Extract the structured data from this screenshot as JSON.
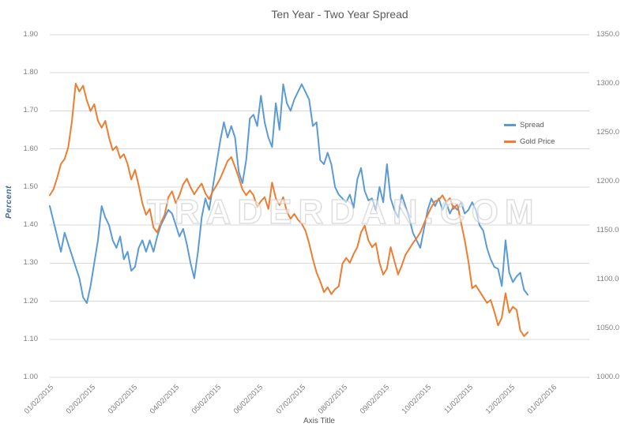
{
  "chart_data": {
    "type": "line",
    "title": "Ten Year - Two Year Spread",
    "watermark": "TRADERDAN.COM",
    "grid": "horizontal",
    "legend_position": "right-center",
    "x_axis": {
      "title": "Axis Title",
      "tick_labels": [
        "01/02/2015",
        "02/02/2015",
        "03/02/2015",
        "04/02/2015",
        "05/02/2015",
        "06/02/2015",
        "07/02/2015",
        "08/02/2015",
        "09/02/2015",
        "10/02/2015",
        "11/02/2015",
        "12/02/2015",
        "01/02/2016"
      ]
    },
    "left_axis": {
      "title": "Percent",
      "min": 1.0,
      "max": 1.9,
      "step": 0.1,
      "tick_labels": [
        "1.90",
        "1.80",
        "1.70",
        "1.60",
        "1.50",
        "1.40",
        "1.30",
        "1.20",
        "1.10",
        "1.00"
      ]
    },
    "right_axis": {
      "min": 1000.0,
      "max": 1350.0,
      "step": 50.0,
      "tick_labels": [
        "1350.0",
        "1300.0",
        "1250.0",
        "1200.0",
        "1150.0",
        "1100.0",
        "1050.0",
        "1000.0"
      ]
    },
    "style": {
      "grid_color": "#D9D9D9",
      "tick_text_color": "#7F7F7F",
      "title_color": "#595959",
      "y_axis_title_color": "#44699E",
      "watermark_color": "#D0D0D0"
    },
    "series": [
      {
        "name": "Spread",
        "axis": "left",
        "color": "#5B9BD5",
        "values": [
          1.45,
          1.41,
          1.37,
          1.33,
          1.38,
          1.35,
          1.32,
          1.29,
          1.26,
          1.21,
          1.195,
          1.24,
          1.3,
          1.36,
          1.45,
          1.42,
          1.4,
          1.36,
          1.34,
          1.37,
          1.31,
          1.33,
          1.28,
          1.29,
          1.34,
          1.36,
          1.33,
          1.36,
          1.33,
          1.37,
          1.4,
          1.42,
          1.44,
          1.43,
          1.4,
          1.37,
          1.39,
          1.35,
          1.3,
          1.26,
          1.33,
          1.42,
          1.47,
          1.44,
          1.5,
          1.56,
          1.62,
          1.67,
          1.63,
          1.66,
          1.63,
          1.54,
          1.51,
          1.57,
          1.68,
          1.69,
          1.66,
          1.74,
          1.67,
          1.63,
          1.605,
          1.72,
          1.65,
          1.77,
          1.72,
          1.7,
          1.73,
          1.75,
          1.77,
          1.75,
          1.73,
          1.66,
          1.67,
          1.57,
          1.56,
          1.59,
          1.56,
          1.5,
          1.48,
          1.47,
          1.46,
          1.48,
          1.445,
          1.52,
          1.55,
          1.49,
          1.465,
          1.47,
          1.44,
          1.5,
          1.46,
          1.56,
          1.47,
          1.44,
          1.42,
          1.48,
          1.45,
          1.42,
          1.38,
          1.36,
          1.34,
          1.39,
          1.44,
          1.47,
          1.45,
          1.47,
          1.44,
          1.46,
          1.43,
          1.45,
          1.44,
          1.46,
          1.43,
          1.44,
          1.46,
          1.44,
          1.4,
          1.385,
          1.34,
          1.31,
          1.29,
          1.285,
          1.24,
          1.36,
          1.275,
          1.25,
          1.265,
          1.275,
          1.23,
          1.217
        ]
      },
      {
        "name": "Gold Price",
        "axis": "right",
        "color": "#ED7D31",
        "values": [
          1186,
          1192,
          1204,
          1218,
          1223,
          1235,
          1262,
          1300,
          1292,
          1298,
          1283,
          1272,
          1279,
          1262,
          1255,
          1262,
          1245,
          1232,
          1236,
          1224,
          1228,
          1218,
          1202,
          1212,
          1196,
          1178,
          1166,
          1172,
          1153,
          1148,
          1158,
          1166,
          1184,
          1190,
          1178,
          1186,
          1197,
          1203,
          1194,
          1187,
          1193,
          1198,
          1188,
          1182,
          1190,
          1196,
          1203,
          1212,
          1221,
          1225,
          1215,
          1204,
          1192,
          1186,
          1191,
          1186,
          1174,
          1180,
          1184,
          1172,
          1199,
          1183,
          1176,
          1184,
          1169,
          1162,
          1167,
          1161,
          1157,
          1150,
          1137,
          1121,
          1107,
          1098,
          1087,
          1092,
          1085,
          1090,
          1093,
          1116,
          1122,
          1117,
          1126,
          1133,
          1148,
          1155,
          1140,
          1133,
          1137,
          1117,
          1105,
          1111,
          1133,
          1119,
          1105,
          1114,
          1125,
          1131,
          1137,
          1142,
          1148,
          1157,
          1166,
          1174,
          1180,
          1181,
          1186,
          1179,
          1183,
          1172,
          1177,
          1158,
          1140,
          1118,
          1091,
          1094,
          1088,
          1082,
          1076,
          1079,
          1067,
          1053,
          1061,
          1086,
          1066,
          1072,
          1069,
          1048,
          1042,
          1046
        ]
      }
    ]
  }
}
